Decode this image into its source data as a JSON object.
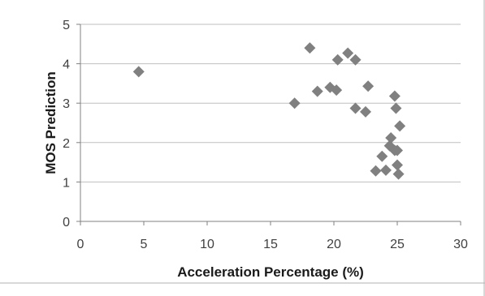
{
  "chart_data": {
    "type": "scatter",
    "title": "",
    "xlabel": "Acceleration Percentage (%)",
    "ylabel": "MOS Prediction",
    "xlim": [
      0,
      30
    ],
    "ylim": [
      0,
      5
    ],
    "x_ticks": [
      0,
      5,
      10,
      15,
      20,
      25,
      30
    ],
    "y_ticks": [
      0,
      1,
      2,
      3,
      4,
      5
    ],
    "grid": "horizontal",
    "legend": "none",
    "marker": "diamond",
    "marker_color": "#808080",
    "series": [
      {
        "points": [
          {
            "x": 4.6,
            "y": 3.8
          },
          {
            "x": 16.9,
            "y": 3.0
          },
          {
            "x": 18.1,
            "y": 4.4
          },
          {
            "x": 18.7,
            "y": 3.3
          },
          {
            "x": 19.7,
            "y": 3.4
          },
          {
            "x": 20.2,
            "y": 3.33
          },
          {
            "x": 20.3,
            "y": 4.1
          },
          {
            "x": 21.1,
            "y": 4.27
          },
          {
            "x": 21.7,
            "y": 4.1
          },
          {
            "x": 21.7,
            "y": 2.87
          },
          {
            "x": 22.5,
            "y": 2.78
          },
          {
            "x": 22.7,
            "y": 3.43
          },
          {
            "x": 23.3,
            "y": 1.28
          },
          {
            "x": 23.8,
            "y": 1.65
          },
          {
            "x": 24.1,
            "y": 1.3
          },
          {
            "x": 24.4,
            "y": 1.92
          },
          {
            "x": 24.5,
            "y": 2.12
          },
          {
            "x": 24.8,
            "y": 3.18
          },
          {
            "x": 24.8,
            "y": 1.8
          },
          {
            "x": 24.9,
            "y": 2.87
          },
          {
            "x": 25.0,
            "y": 1.8
          },
          {
            "x": 25.0,
            "y": 1.43
          },
          {
            "x": 25.1,
            "y": 1.2
          },
          {
            "x": 25.2,
            "y": 2.42
          }
        ]
      }
    ]
  }
}
